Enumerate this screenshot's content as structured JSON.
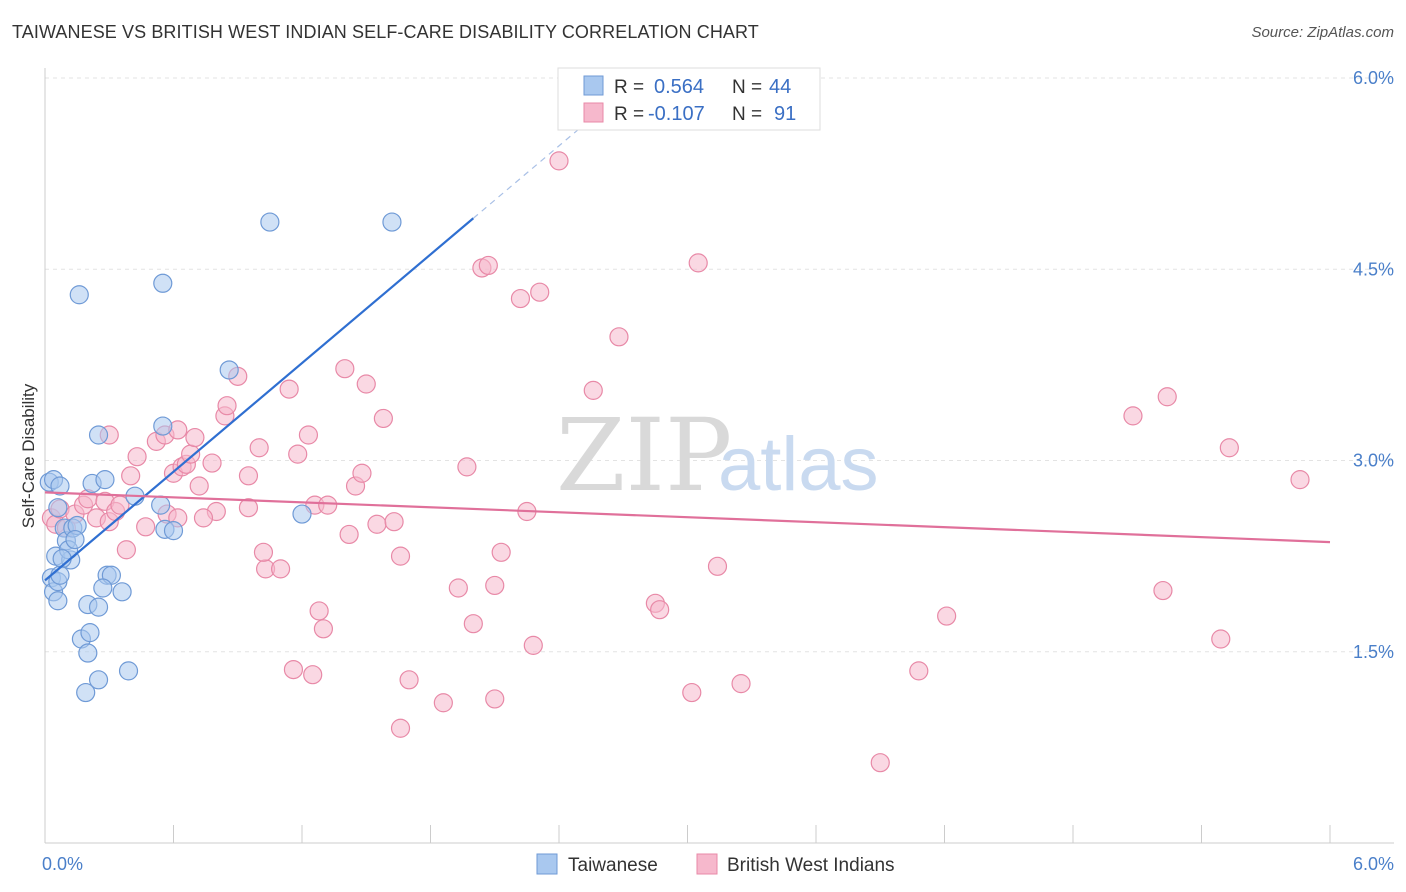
{
  "header": {
    "title": "TAIWANESE VS BRITISH WEST INDIAN SELF-CARE DISABILITY CORRELATION CHART",
    "source": "Source: ZipAtlas.com"
  },
  "watermark": {
    "zip": "ZIP",
    "atlas": "atlas"
  },
  "legend": {
    "rows": [
      {
        "r_label": "R =",
        "r_value": "0.564",
        "n_label": "N =",
        "n_value": "44",
        "color": "#a9c8ef"
      },
      {
        "r_label": "R =",
        "r_value": "-0.107",
        "n_label": "N =",
        "n_value": "91",
        "color": "#f6b8cc"
      }
    ]
  },
  "bottom_legend": [
    {
      "label": "Taiwanese",
      "color": "#a9c8ef"
    },
    {
      "label": "British West Indians",
      "color": "#f6b8cc"
    }
  ],
  "chart_data": {
    "type": "scatter",
    "title": "TAIWANESE VS BRITISH WEST INDIAN SELF-CARE DISABILITY CORRELATION CHART",
    "ylabel": "Self-Care Disability",
    "xlabel": "",
    "xlim": [
      0,
      6.0
    ],
    "ylim": [
      0,
      6.0
    ],
    "x_tick_labels": [
      "0.0%",
      "6.0%"
    ],
    "y_ticks": [
      1.5,
      3.0,
      4.5,
      6.0
    ],
    "y_tick_labels": [
      "1.5%",
      "3.0%",
      "4.5%",
      "6.0%"
    ],
    "grid": true,
    "colors": {
      "taiwanese_fill": "#a9c8ef",
      "taiwanese_stroke": "#6f9ad6",
      "taiwanese_line": "#2f6fd1",
      "bwi_fill": "#f6b8cc",
      "bwi_stroke": "#e889a7",
      "bwi_line": "#e0709a"
    },
    "series": [
      {
        "name": "Taiwanese",
        "points": [
          [
            0.02,
            2.83
          ],
          [
            0.04,
            2.85
          ],
          [
            0.07,
            2.8
          ],
          [
            0.06,
            2.63
          ],
          [
            0.05,
            2.25
          ],
          [
            0.03,
            2.08
          ],
          [
            0.04,
            1.97
          ],
          [
            0.06,
            1.9
          ],
          [
            0.09,
            2.47
          ],
          [
            0.1,
            2.37
          ],
          [
            0.12,
            2.22
          ],
          [
            0.11,
            2.3
          ],
          [
            0.13,
            2.47
          ],
          [
            0.15,
            2.49
          ],
          [
            0.08,
            2.23
          ],
          [
            0.14,
            2.38
          ],
          [
            0.22,
            2.82
          ],
          [
            0.28,
            2.85
          ],
          [
            0.25,
            3.2
          ],
          [
            0.16,
            4.3
          ],
          [
            0.29,
            2.1
          ],
          [
            0.31,
            2.1
          ],
          [
            0.27,
            2.0
          ],
          [
            0.36,
            1.97
          ],
          [
            0.2,
            1.87
          ],
          [
            0.25,
            1.85
          ],
          [
            0.17,
            1.6
          ],
          [
            0.21,
            1.65
          ],
          [
            0.2,
            1.49
          ],
          [
            0.25,
            1.28
          ],
          [
            0.19,
            1.18
          ],
          [
            0.39,
            1.35
          ],
          [
            0.42,
            2.72
          ],
          [
            0.56,
            2.46
          ],
          [
            0.55,
            3.27
          ],
          [
            0.54,
            2.65
          ],
          [
            0.6,
            2.45
          ],
          [
            0.55,
            4.39
          ],
          [
            0.86,
            3.71
          ],
          [
            1.05,
            4.87
          ],
          [
            1.2,
            2.58
          ],
          [
            1.62,
            4.87
          ],
          [
            0.06,
            2.05
          ],
          [
            0.07,
            2.1
          ]
        ]
      },
      {
        "name": "British West Indians",
        "points": [
          [
            0.03,
            2.55
          ],
          [
            0.05,
            2.5
          ],
          [
            0.07,
            2.62
          ],
          [
            0.1,
            2.47
          ],
          [
            0.14,
            2.58
          ],
          [
            0.18,
            2.65
          ],
          [
            0.2,
            2.7
          ],
          [
            0.24,
            2.55
          ],
          [
            0.28,
            2.68
          ],
          [
            0.3,
            2.52
          ],
          [
            0.33,
            2.6
          ],
          [
            0.35,
            2.65
          ],
          [
            0.3,
            3.2
          ],
          [
            0.38,
            2.3
          ],
          [
            0.4,
            2.88
          ],
          [
            0.43,
            3.03
          ],
          [
            0.47,
            2.48
          ],
          [
            0.52,
            3.15
          ],
          [
            0.56,
            3.2
          ],
          [
            0.57,
            2.58
          ],
          [
            0.6,
            2.9
          ],
          [
            0.62,
            2.55
          ],
          [
            0.64,
            2.95
          ],
          [
            0.66,
            2.97
          ],
          [
            0.68,
            3.05
          ],
          [
            0.7,
            3.18
          ],
          [
            0.72,
            2.8
          ],
          [
            0.78,
            2.98
          ],
          [
            0.8,
            2.6
          ],
          [
            0.84,
            3.35
          ],
          [
            0.85,
            3.43
          ],
          [
            0.9,
            3.66
          ],
          [
            0.95,
            2.88
          ],
          [
            1.0,
            3.1
          ],
          [
            1.03,
            2.15
          ],
          [
            1.1,
            2.15
          ],
          [
            1.14,
            3.56
          ],
          [
            1.18,
            3.05
          ],
          [
            1.23,
            3.2
          ],
          [
            1.26,
            2.65
          ],
          [
            1.28,
            1.82
          ],
          [
            1.3,
            1.68
          ],
          [
            1.32,
            2.65
          ],
          [
            1.4,
            3.72
          ],
          [
            1.42,
            2.42
          ],
          [
            1.45,
            2.8
          ],
          [
            1.48,
            2.9
          ],
          [
            1.5,
            3.6
          ],
          [
            1.55,
            2.5
          ],
          [
            1.58,
            3.33
          ],
          [
            1.63,
            2.52
          ],
          [
            1.66,
            2.25
          ],
          [
            1.7,
            1.28
          ],
          [
            1.66,
            0.9
          ],
          [
            1.86,
            1.1
          ],
          [
            1.93,
            2.0
          ],
          [
            1.97,
            2.95
          ],
          [
            2.0,
            1.72
          ],
          [
            2.04,
            4.51
          ],
          [
            2.07,
            4.53
          ],
          [
            2.1,
            2.02
          ],
          [
            2.13,
            2.28
          ],
          [
            2.22,
            4.27
          ],
          [
            2.25,
            2.6
          ],
          [
            2.28,
            1.55
          ],
          [
            2.31,
            4.32
          ],
          [
            2.4,
            5.35
          ],
          [
            2.56,
            3.55
          ],
          [
            2.68,
            3.97
          ],
          [
            2.85,
            1.88
          ],
          [
            2.87,
            1.83
          ],
          [
            3.05,
            4.55
          ],
          [
            3.02,
            1.18
          ],
          [
            3.14,
            2.17
          ],
          [
            3.25,
            1.25
          ],
          [
            3.9,
            0.63
          ],
          [
            4.08,
            1.35
          ],
          [
            4.21,
            1.78
          ],
          [
            5.08,
            3.35
          ],
          [
            5.24,
            3.5
          ],
          [
            5.22,
            1.98
          ],
          [
            5.49,
            1.6
          ],
          [
            5.53,
            3.1
          ],
          [
            5.86,
            2.85
          ],
          [
            1.02,
            2.28
          ],
          [
            0.95,
            2.63
          ],
          [
            0.74,
            2.55
          ],
          [
            0.62,
            3.24
          ],
          [
            1.25,
            1.32
          ],
          [
            1.16,
            1.36
          ],
          [
            2.1,
            1.13
          ]
        ]
      }
    ],
    "trendlines": [
      {
        "series": "Taiwanese",
        "x0": 0.0,
        "y0": 2.06,
        "x1": 2.0,
        "y1": 4.9,
        "dash_to_x": 2.55
      },
      {
        "series": "British West Indians",
        "x0": 0.0,
        "y0": 2.75,
        "x1": 6.0,
        "y1": 2.36
      }
    ]
  }
}
